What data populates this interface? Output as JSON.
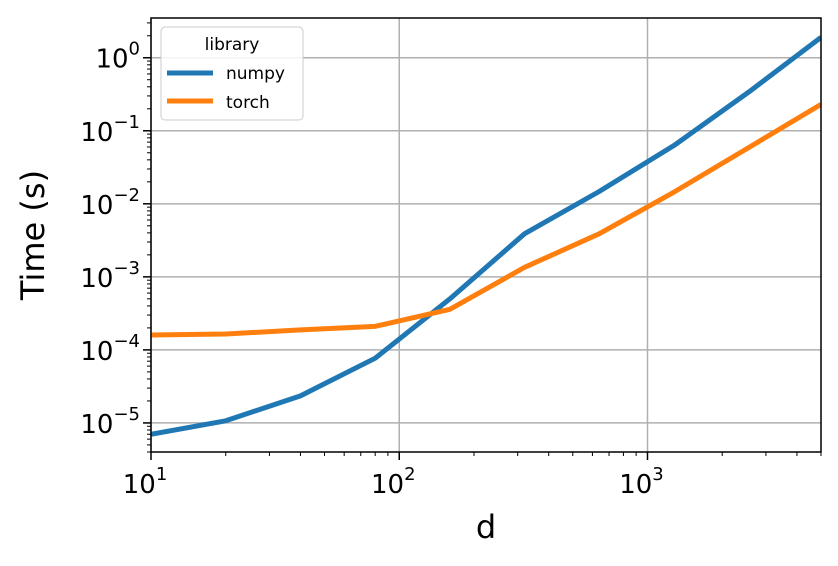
{
  "chart_data": {
    "type": "line",
    "title": "",
    "xlabel": "d",
    "ylabel": "Time (s)",
    "xscale": "log",
    "yscale": "log",
    "xlim": [
      10,
      5000
    ],
    "ylim": [
      4e-06,
      3.5
    ],
    "grid": true,
    "legend": {
      "title": "library",
      "placement": "top-left"
    },
    "x_ticks": [
      {
        "base": "10",
        "exp": "1",
        "value": 10
      },
      {
        "base": "10",
        "exp": "2",
        "value": 100
      },
      {
        "base": "10",
        "exp": "3",
        "value": 1000
      }
    ],
    "y_ticks": [
      {
        "base": "10",
        "exp": "0",
        "value": 1
      },
      {
        "base": "10",
        "exp": "−1",
        "value": 0.1
      },
      {
        "base": "10",
        "exp": "−2",
        "value": 0.01
      },
      {
        "base": "10",
        "exp": "−3",
        "value": 0.001
      },
      {
        "base": "10",
        "exp": "−4",
        "value": 0.0001
      },
      {
        "base": "10",
        "exp": "−5",
        "value": 1e-05
      }
    ],
    "series": [
      {
        "name": "numpy",
        "color": "#1f77b4",
        "x": [
          10,
          20,
          40,
          80,
          160,
          320,
          640,
          1280,
          2560,
          5000
        ],
        "y": [
          7e-06,
          1.07e-05,
          2.35e-05,
          7.7e-05,
          0.0005,
          0.0039,
          0.0148,
          0.063,
          0.34,
          1.9
        ]
      },
      {
        "name": "torch",
        "color": "#ff7f0e",
        "x": [
          10,
          20,
          40,
          80,
          160,
          320,
          640,
          1280,
          2560,
          5000
        ],
        "y": [
          0.00016,
          0.000165,
          0.000188,
          0.00021,
          0.00036,
          0.00135,
          0.0039,
          0.0145,
          0.059,
          0.23
        ]
      }
    ]
  }
}
